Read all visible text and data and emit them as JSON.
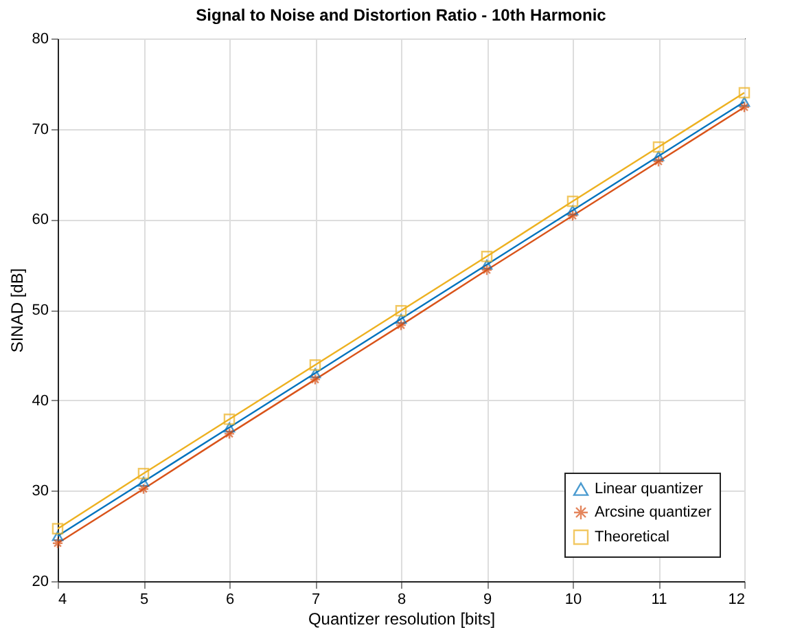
{
  "chart_data": {
    "type": "line",
    "title": "Signal to Noise and Distortion Ratio - 10th Harmonic",
    "xlabel": "Quantizer resolution [bits]",
    "ylabel": "SINAD [dB]",
    "x": [
      4,
      5,
      6,
      7,
      8,
      9,
      10,
      11,
      12
    ],
    "series": [
      {
        "name": "Linear quantizer",
        "color": "#0072bd",
        "marker": "triangle",
        "values": [
          25.0,
          31.0,
          37.0,
          43.0,
          49.0,
          55.0,
          61.0,
          67.0,
          73.0
        ]
      },
      {
        "name": "Arcsine quantizer",
        "color": "#d95319",
        "marker": "cross",
        "values": [
          24.2,
          30.2,
          36.3,
          42.3,
          48.3,
          54.4,
          60.4,
          66.4,
          72.4
        ]
      },
      {
        "name": "Theoretical",
        "color": "#edb120",
        "marker": "square",
        "values": [
          25.8,
          31.9,
          37.9,
          43.9,
          49.9,
          55.9,
          62.0,
          68.0,
          74.0
        ]
      }
    ],
    "xlim": [
      4,
      12
    ],
    "xticks": [
      4,
      5,
      6,
      7,
      8,
      9,
      10,
      11,
      12
    ],
    "ylim": [
      20,
      80
    ],
    "yticks": [
      20,
      30,
      40,
      50,
      60,
      70,
      80
    ],
    "grid": true,
    "legend": "bottom right",
    "line_style": "solid"
  }
}
